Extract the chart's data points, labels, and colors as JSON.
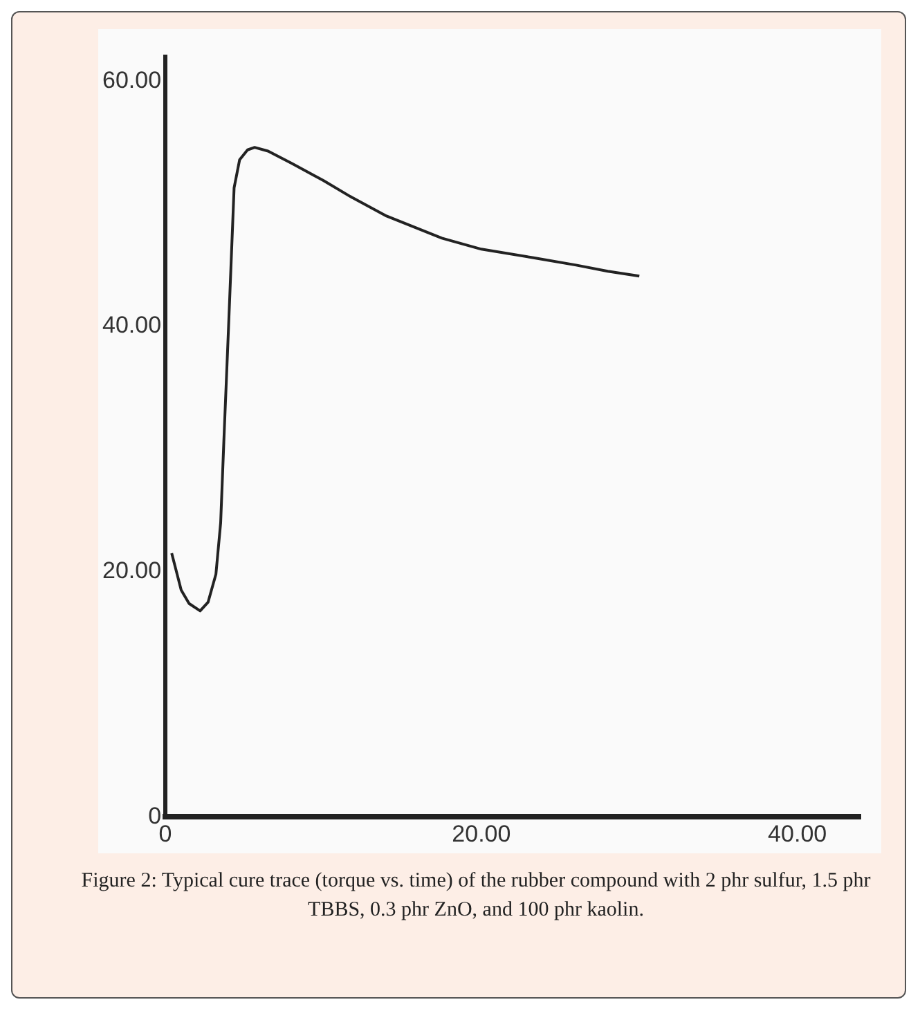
{
  "chart_data": {
    "type": "line",
    "x": [
      0.4,
      1,
      1.5,
      2.2,
      2.7,
      3.2,
      3.5,
      3.7,
      4,
      4.35,
      4.7,
      5.2,
      5.65,
      6.5,
      8,
      10,
      11.7,
      14,
      17.5,
      20,
      23.3,
      26,
      28,
      30
    ],
    "series": [
      {
        "color": "#222222",
        "values": [
          21.5,
          18.5,
          17.4,
          16.8,
          17.5,
          19.8,
          24,
          30.6,
          40,
          51.3,
          53.6,
          54.4,
          54.6,
          54.3,
          53.3,
          51.9,
          50.6,
          49,
          47.2,
          46.3,
          45.6,
          45,
          44.5,
          44.1
        ]
      }
    ],
    "xlim": [
      0,
      44
    ],
    "xticks": [
      0,
      {
        "value": 20,
        "label": "20.00"
      },
      {
        "value": 40,
        "label": "40.00"
      }
    ],
    "ylim": [
      0,
      62
    ],
    "yticks": [
      0,
      {
        "value": 20,
        "label": "20.00"
      },
      {
        "value": 40,
        "label": "40.00"
      },
      {
        "value": 60,
        "label": "60.00"
      }
    ],
    "grid": false,
    "legend": false,
    "marker": "none",
    "line_style": "solid",
    "annotations": [
      "Figure 2: Typical cure trace (torque vs. time) of the rubber compound with 2 phr sulfur, 1.5 phr TBBS, 0.3 phr ZnO, and 100 phr kaolin."
    ]
  }
}
